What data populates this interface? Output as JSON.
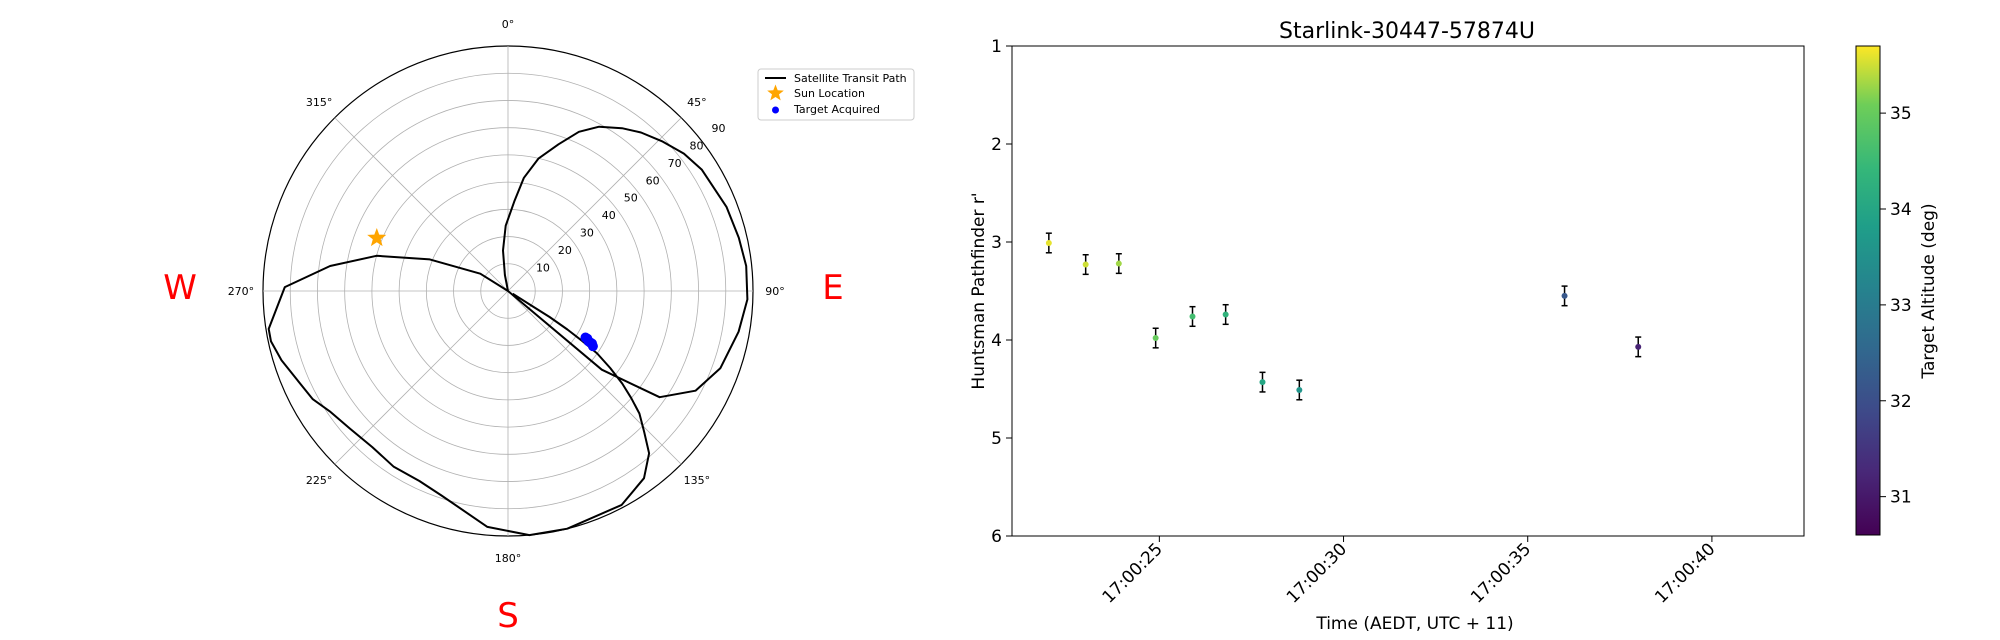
{
  "compass": {
    "west": "W",
    "east": "E",
    "south": "S"
  },
  "chart_data": [
    {
      "type": "polar",
      "angular_ticks": [
        "0°",
        "45°",
        "90°",
        "135°",
        "180°",
        "225°",
        "270°",
        "315°"
      ],
      "radial_ticks": [
        "10",
        "20",
        "30",
        "40",
        "50",
        "60",
        "70",
        "80",
        "90"
      ],
      "radial_range": [
        0,
        90
      ],
      "zero_location": "N",
      "direction": "clockwise",
      "grid": true,
      "legend": {
        "placement": "upper-right-outside",
        "entries": [
          {
            "label": "Satellite Transit Path",
            "color": "#000000"
          },
          {
            "label": "Sun Location",
            "color": "#FFA500"
          },
          {
            "label": "Target Acquired",
            "color": "#0000FF"
          }
        ]
      },
      "series": [
        {
          "name": "Satellite Transit Path",
          "color": "#000000",
          "points": [
            [
              135,
              0
            ],
            [
              130,
              45
            ],
            [
              125,
              68
            ],
            [
              118,
              78
            ],
            [
              110,
              83
            ],
            [
              100,
              86
            ],
            [
              92,
              88
            ],
            [
              84,
              88
            ],
            [
              77,
              87
            ],
            [
              69,
              86
            ],
            [
              58,
              84
            ],
            [
              52,
              82
            ],
            [
              46,
              79
            ],
            [
              40,
              76
            ],
            [
              35,
              73
            ],
            [
              29,
              69
            ],
            [
              24,
              64
            ],
            [
              19,
              57
            ],
            [
              13,
              50
            ],
            [
              8,
              42
            ],
            [
              4,
              33
            ],
            [
              358,
              24
            ],
            [
              353,
              15
            ],
            [
              349,
              6
            ],
            [
              346,
              0
            ],
            [
              302,
              12
            ],
            [
              292,
              31
            ],
            [
              285,
              50
            ],
            [
              278,
              66
            ],
            [
              271,
              82
            ],
            [
              261,
              89
            ],
            [
              258,
              89
            ],
            [
              253,
              87
            ],
            [
              247,
              84
            ],
            [
              241,
              82
            ],
            [
              236,
              79
            ],
            [
              229,
              77
            ],
            [
              221,
              76
            ],
            [
              213,
              77
            ],
            [
              205,
              77
            ],
            [
              198,
              79
            ],
            [
              185,
              87
            ],
            [
              175,
              90
            ],
            [
              166,
              90
            ],
            [
              152,
              89
            ],
            [
              144,
              85
            ],
            [
              139,
              79
            ],
            [
              136,
              72
            ],
            [
              133,
              66
            ],
            [
              131,
              60
            ],
            [
              129,
              54
            ],
            [
              127,
              47
            ],
            [
              125,
              40
            ],
            [
              124,
              33
            ],
            [
              123,
              26
            ],
            [
              122,
              18
            ],
            [
              122,
              10
            ],
            [
              120,
              2
            ]
          ]
        },
        {
          "name": "Sun Location",
          "color": "#FFA500",
          "points": [
            [
              292,
              52
            ]
          ]
        },
        {
          "name": "Target Acquired",
          "color": "#0000FF",
          "points": [
            [
              121,
              33.2
            ],
            [
              121,
              34.0
            ],
            [
              122,
              34.8
            ],
            [
              122,
              35.6
            ],
            [
              122,
              36.4
            ],
            [
              123,
              37.2
            ]
          ]
        }
      ]
    },
    {
      "type": "scatter",
      "title": "Starlink-30447-57874U",
      "xlabel": "Time (AEDT, UTC + 11)",
      "ylabel": "Huntsman Pathfinder r'",
      "x_range": [
        "17:00:21",
        "17:00:42.5"
      ],
      "ylim": [
        1,
        6
      ],
      "y_inverted": true,
      "x_ticks": [
        "17:00:25",
        "17:00:30",
        "17:00:35",
        "17:00:40"
      ],
      "y_ticks": [
        "1",
        "2",
        "3",
        "4",
        "5",
        "6"
      ],
      "grid": false,
      "points": [
        {
          "x": "17:00:22.0",
          "y": 3.01,
          "yerr": 0.1,
          "altitude": 35.6
        },
        {
          "x": "17:00:23.0",
          "y": 3.23,
          "yerr": 0.1,
          "altitude": 35.5
        },
        {
          "x": "17:00:23.9",
          "y": 3.22,
          "yerr": 0.1,
          "altitude": 35.3
        },
        {
          "x": "17:00:24.9",
          "y": 3.98,
          "yerr": 0.1,
          "altitude": 35.0
        },
        {
          "x": "17:00:25.9",
          "y": 3.76,
          "yerr": 0.1,
          "altitude": 34.6
        },
        {
          "x": "17:00:26.8",
          "y": 3.74,
          "yerr": 0.1,
          "altitude": 34.3
        },
        {
          "x": "17:00:27.8",
          "y": 4.43,
          "yerr": 0.1,
          "altitude": 34.0
        },
        {
          "x": "17:00:28.8",
          "y": 4.51,
          "yerr": 0.1,
          "altitude": 33.6
        },
        {
          "x": "17:00:36.0",
          "y": 3.55,
          "yerr": 0.1,
          "altitude": 32.2
        },
        {
          "x": "17:00:38.0",
          "y": 4.07,
          "yerr": 0.1,
          "altitude": 31.2
        }
      ],
      "colorbar": {
        "label": "Target Altitude (deg)",
        "colormap": "viridis",
        "range": [
          30.6,
          35.7
        ],
        "ticks": [
          "31",
          "32",
          "33",
          "34",
          "35"
        ]
      }
    }
  ]
}
